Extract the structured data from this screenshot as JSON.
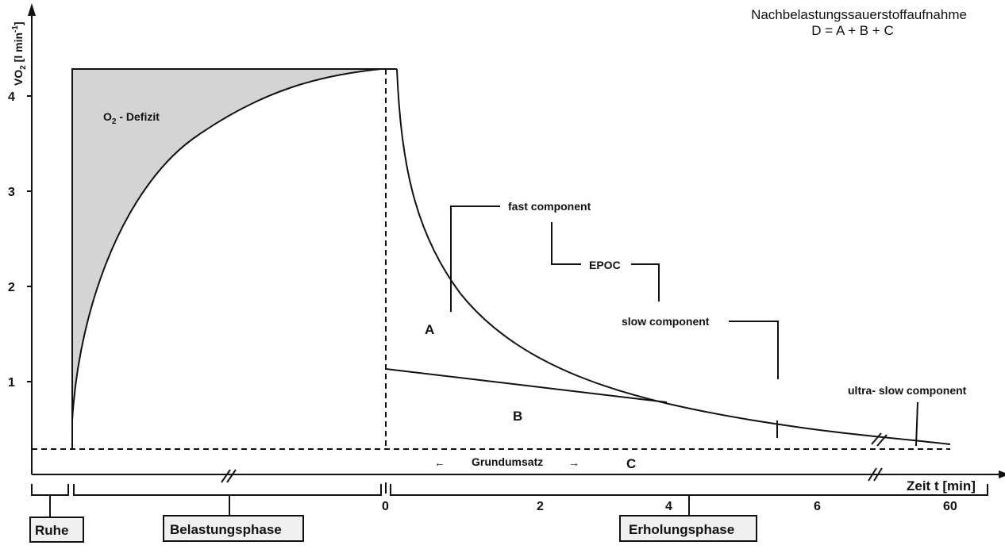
{
  "title": {
    "line1": "Nachbelastungssauerstoffaufnahme",
    "line2": "D = A + B + C"
  },
  "y_axis": {
    "label_main": "VO",
    "label_sub": "2",
    "label_unit": " [l min",
    "label_sup": "-1",
    "label_close": "]",
    "ticks": [
      "1",
      "2",
      "3",
      "4"
    ]
  },
  "x_axis": {
    "label": "Zeit t [min]",
    "ticks": [
      "0",
      "2",
      "4",
      "6",
      "60"
    ]
  },
  "labels": {
    "deficit_main": "O",
    "deficit_sub": "2",
    "deficit_rest": " - Defizit",
    "fast_component": "fast component",
    "epoc": "EPOC",
    "slow_component": "slow component",
    "ultra_slow_component": "ultra- slow component",
    "grundumsatz": "Grundumsatz",
    "arrow_left": "←",
    "arrow_right": "→",
    "area_a": "A",
    "area_b": "B",
    "area_c": "C"
  },
  "phases": {
    "rest": "Ruhe",
    "exercise": "Belastungsphase",
    "recovery": "Erholungsphase"
  },
  "colors": {
    "line": "#111111",
    "deficit_fill": "#d4d4d4",
    "phase_box": "#f0f0f0"
  }
}
